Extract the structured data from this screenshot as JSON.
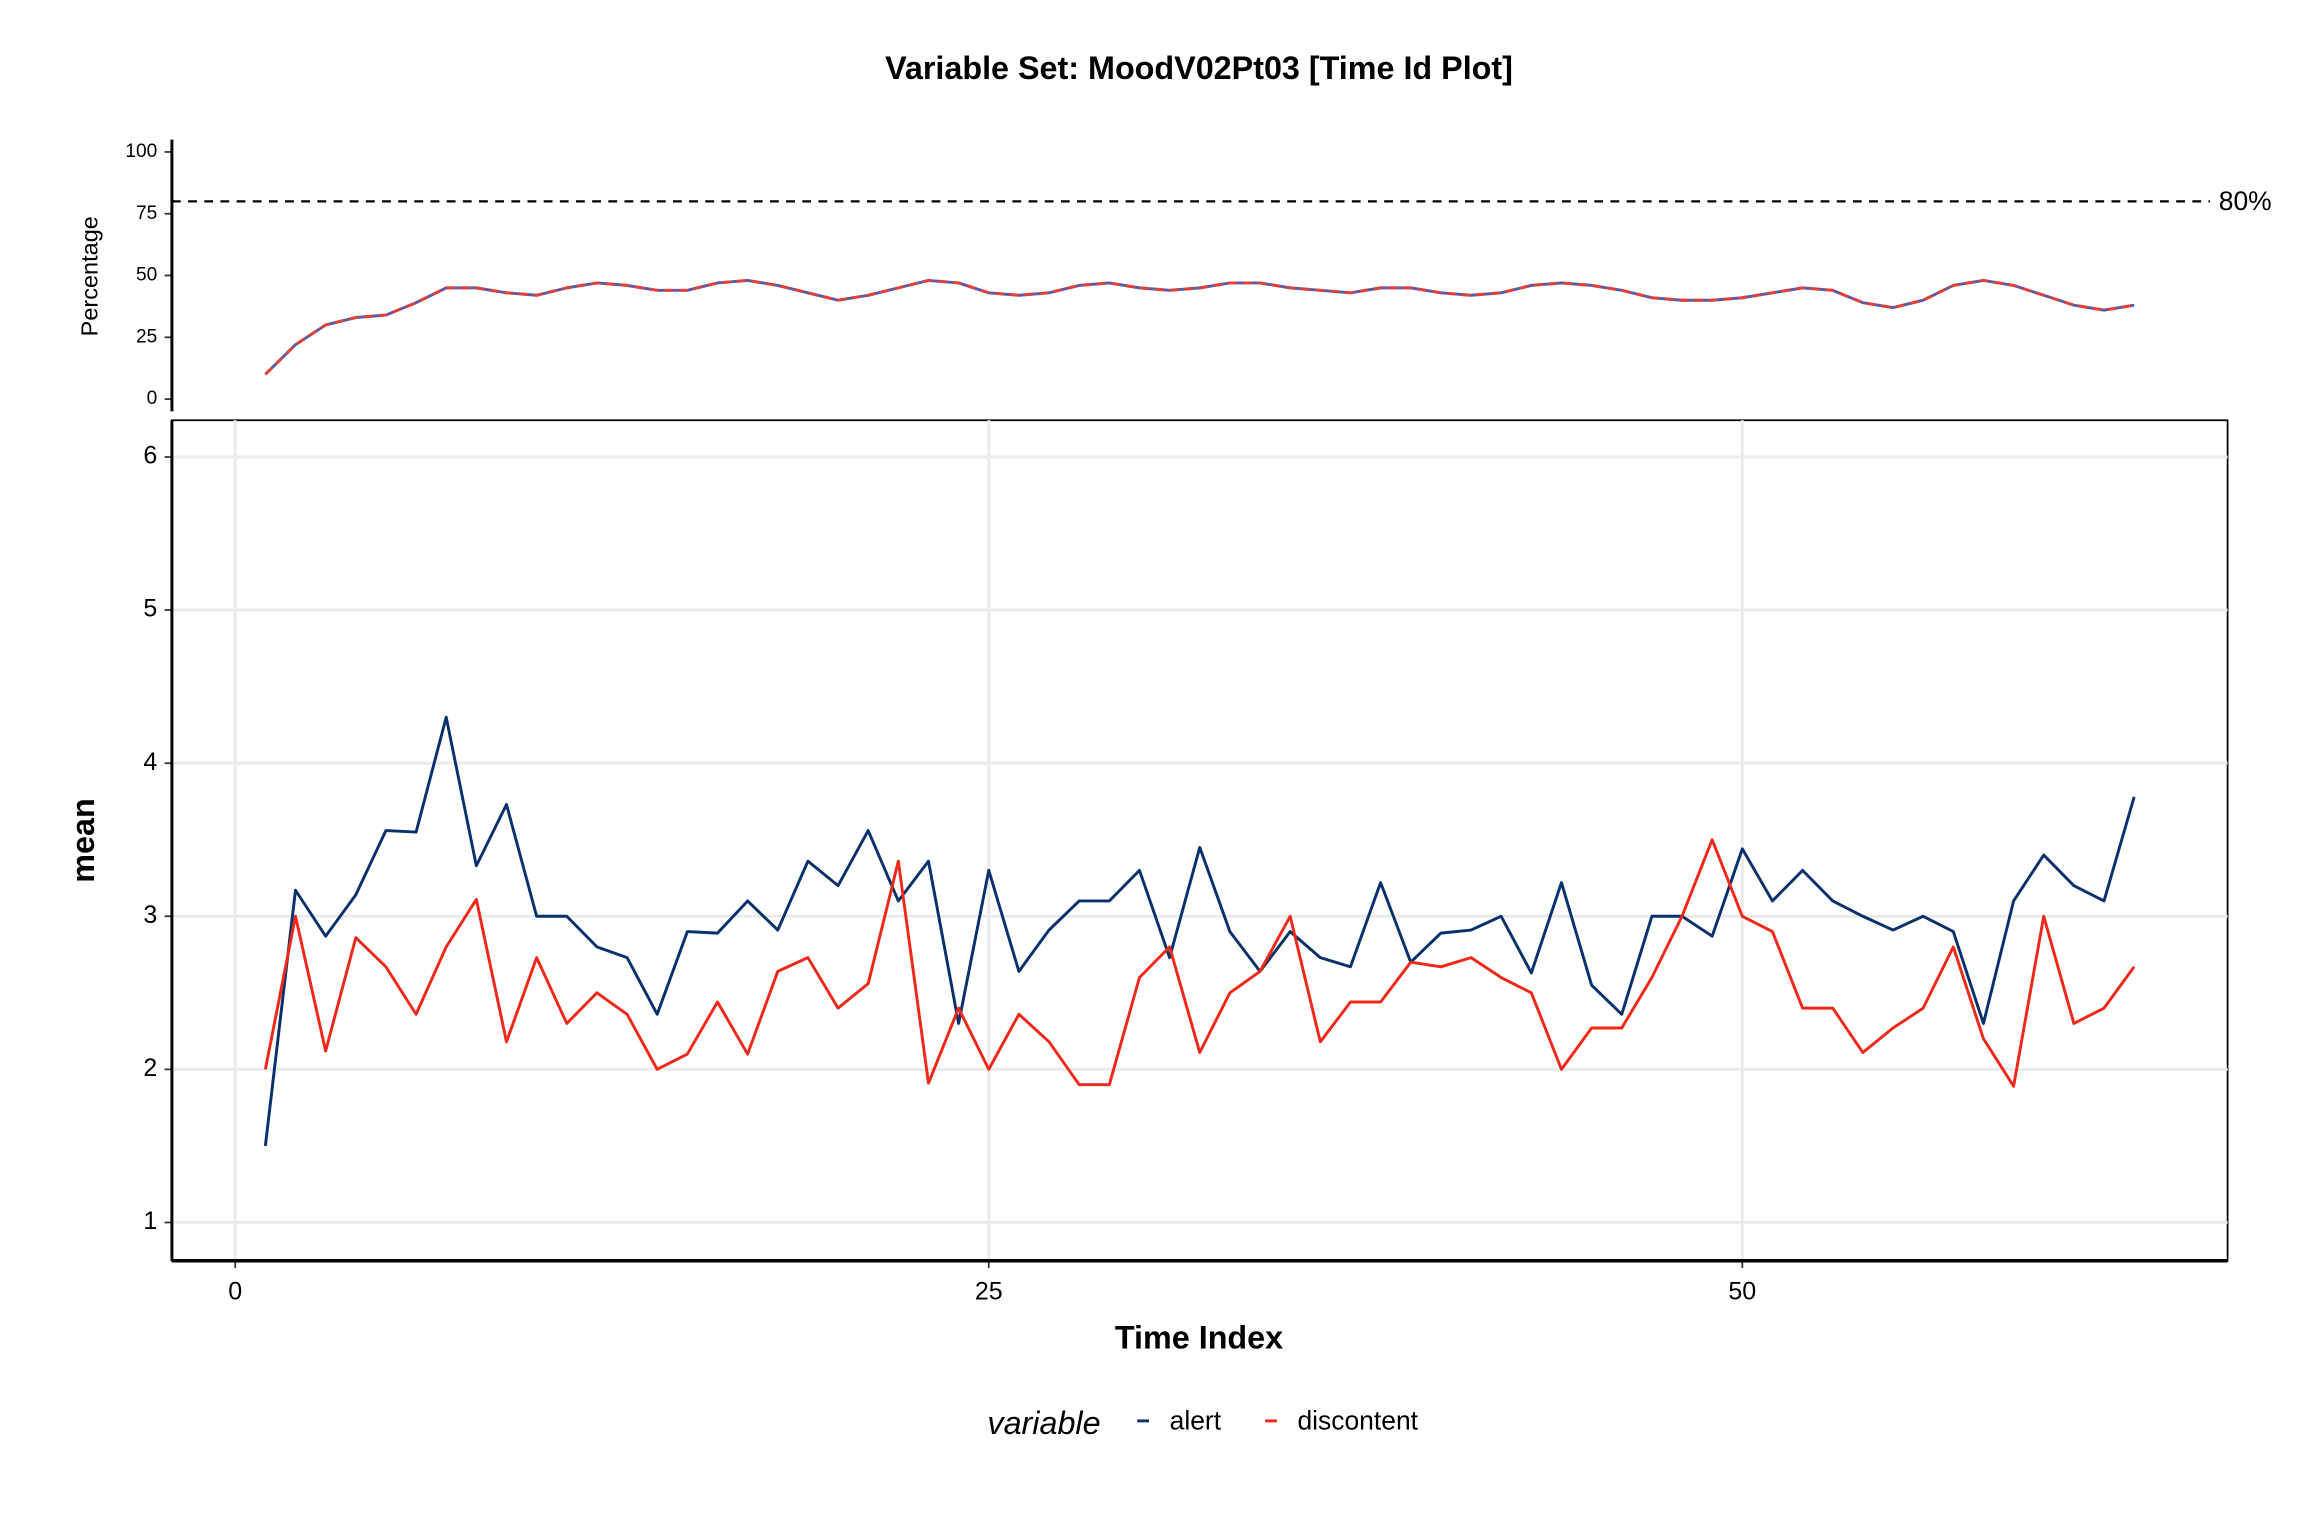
{
  "chart_data": [
    {
      "type": "line",
      "title": "Variable Set: MoodV02Pt03 [Time Id Plot]",
      "ylabel": "Percentage",
      "x": [
        1,
        2,
        3,
        4,
        5,
        6,
        7,
        8,
        9,
        10,
        11,
        12,
        13,
        14,
        15,
        16,
        17,
        18,
        19,
        20,
        21,
        22,
        23,
        24,
        25,
        26,
        27,
        28,
        29,
        30,
        31,
        32,
        33,
        34,
        35,
        36,
        37,
        38,
        39,
        40,
        41,
        42,
        43,
        44,
        45,
        46,
        47,
        48,
        49,
        50,
        51,
        52,
        53,
        54,
        55,
        56,
        57,
        58,
        59,
        60,
        61,
        62,
        63
      ],
      "xlim": [
        -2.1,
        66.1
      ],
      "ylim": [
        -5,
        105
      ],
      "yticks": [
        0,
        25,
        50,
        75,
        100
      ],
      "grid": false,
      "reference_line": {
        "value": 80,
        "label": "80%"
      },
      "series": [
        {
          "name": "alert",
          "color": "#5b5aa8",
          "linetype": "solid",
          "values": [
            10,
            22,
            30,
            33,
            34,
            39,
            45,
            45,
            43,
            42,
            45,
            47,
            46,
            44,
            44,
            47,
            48,
            46,
            43,
            40,
            42,
            45,
            48,
            47,
            43,
            42,
            43,
            46,
            47,
            45,
            44,
            45,
            47,
            47,
            45,
            44,
            43,
            45,
            45,
            43,
            42,
            43,
            46,
            47,
            46,
            44,
            41,
            40,
            40,
            41,
            43,
            45,
            44,
            39,
            37,
            40,
            46,
            48,
            46,
            42,
            38,
            36,
            38
          ]
        },
        {
          "name": "discontent",
          "color": "#e0413a",
          "linetype": "dashed",
          "values": [
            10,
            22,
            30,
            33,
            34,
            39,
            45,
            45,
            43,
            42,
            45,
            47,
            46,
            44,
            44,
            47,
            48,
            46,
            43,
            40,
            42,
            45,
            48,
            47,
            43,
            42,
            43,
            46,
            47,
            45,
            44,
            45,
            47,
            47,
            45,
            44,
            43,
            45,
            45,
            43,
            42,
            43,
            46,
            47,
            46,
            44,
            41,
            40,
            40,
            41,
            43,
            45,
            44,
            39,
            37,
            40,
            46,
            48,
            46,
            42,
            38,
            36,
            38
          ]
        }
      ]
    },
    {
      "type": "line",
      "xlabel": "Time Index",
      "ylabel": "mean",
      "legend_title": "variable",
      "legend": "bottom",
      "x": [
        1,
        2,
        3,
        4,
        5,
        6,
        7,
        8,
        9,
        10,
        11,
        12,
        13,
        14,
        15,
        16,
        17,
        18,
        19,
        20,
        21,
        22,
        23,
        24,
        25,
        26,
        27,
        28,
        29,
        30,
        31,
        32,
        33,
        34,
        35,
        36,
        37,
        38,
        39,
        40,
        41,
        42,
        43,
        44,
        45,
        46,
        47,
        48,
        49,
        50,
        51,
        52,
        53,
        54,
        55,
        56,
        57,
        58,
        59,
        60,
        61,
        62,
        63
      ],
      "xlim": [
        -2.1,
        66.1
      ],
      "xticks": [
        0,
        25,
        50
      ],
      "ylim": [
        0.75,
        6.24
      ],
      "yticks": [
        1,
        2,
        3,
        4,
        5,
        6
      ],
      "grid": true,
      "series": [
        {
          "name": "alert",
          "color": "#08306b",
          "values": [
            1.5,
            3.17,
            2.87,
            3.14,
            3.56,
            3.55,
            4.3,
            3.33,
            3.73,
            3.0,
            3.0,
            2.8,
            2.73,
            2.36,
            2.9,
            2.89,
            3.1,
            2.91,
            3.36,
            3.2,
            3.56,
            3.1,
            3.36,
            2.3,
            3.3,
            2.64,
            2.91,
            3.1,
            3.1,
            3.3,
            2.73,
            3.45,
            2.9,
            2.64,
            2.9,
            2.73,
            2.67,
            3.22,
            2.7,
            2.89,
            2.91,
            3.0,
            2.63,
            3.22,
            2.55,
            2.36,
            3.0,
            3.0,
            2.87,
            3.44,
            3.1,
            3.3,
            3.1,
            3.0,
            2.91,
            3.0,
            2.9,
            2.3,
            3.1,
            3.4,
            3.2,
            3.1,
            3.78
          ]
        },
        {
          "name": "discontent",
          "color": "#f0281a",
          "values": [
            2.0,
            3.0,
            2.12,
            2.86,
            2.67,
            2.36,
            2.8,
            3.11,
            2.18,
            2.73,
            2.3,
            2.5,
            2.36,
            2.0,
            2.1,
            2.44,
            2.1,
            2.64,
            2.73,
            2.4,
            2.56,
            3.36,
            1.91,
            2.4,
            2.0,
            2.36,
            2.18,
            1.9,
            1.9,
            2.6,
            2.8,
            2.11,
            2.5,
            2.64,
            3.0,
            2.18,
            2.44,
            2.44,
            2.7,
            2.67,
            2.73,
            2.6,
            2.5,
            2.0,
            2.27,
            2.27,
            2.6,
            3.0,
            3.5,
            3.0,
            2.9,
            2.4,
            2.4,
            2.11,
            2.27,
            2.4,
            2.8,
            2.2,
            1.89,
            3.0,
            2.3,
            2.4,
            2.67
          ]
        }
      ]
    }
  ]
}
